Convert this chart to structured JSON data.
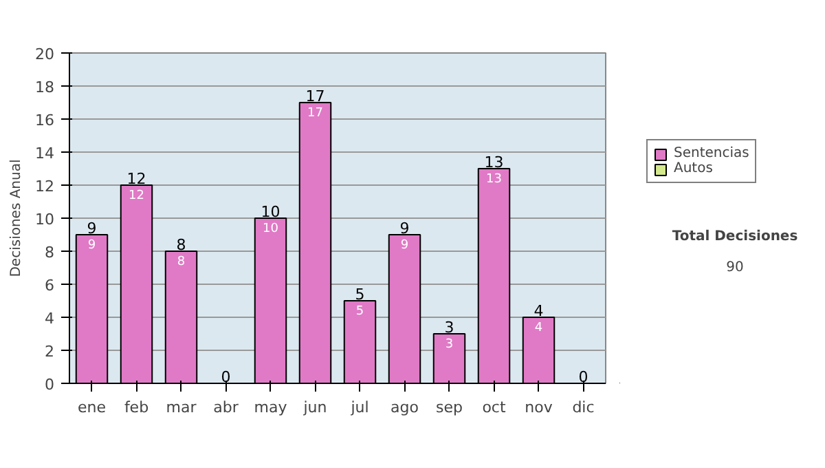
{
  "chart_data": {
    "type": "bar",
    "stacked": true,
    "ylabel": "Decisiones Anual",
    "categories": [
      "ene",
      "feb",
      "mar",
      "abr",
      "may",
      "jun",
      "jul",
      "ago",
      "sep",
      "oct",
      "nov",
      "dic"
    ],
    "series": [
      {
        "name": "Sentencias",
        "color": "#e07ac6",
        "values": [
          9,
          12,
          8,
          0,
          10,
          17,
          5,
          9,
          3,
          13,
          4,
          0
        ],
        "value_labels": [
          "9",
          "12",
          "8",
          null,
          "10",
          "17",
          "5",
          "9",
          "3",
          "13",
          "4",
          null
        ]
      },
      {
        "name": "Autos",
        "color": "#d4e88c",
        "values": [
          0,
          0,
          0,
          0,
          0,
          0,
          0,
          0,
          0,
          0,
          0,
          0
        ]
      }
    ],
    "totals": [
      "9",
      "12",
      "8",
      "0",
      "10",
      "17",
      "5",
      "9",
      "3",
      "13",
      "4",
      "0"
    ],
    "ylim": [
      0,
      20
    ],
    "yticks": [
      0,
      2,
      4,
      6,
      8,
      10,
      12,
      14,
      16,
      18,
      20
    ],
    "grid": "y",
    "legend": "right",
    "annotations": [
      "Total Decisiones",
      "90"
    ]
  }
}
